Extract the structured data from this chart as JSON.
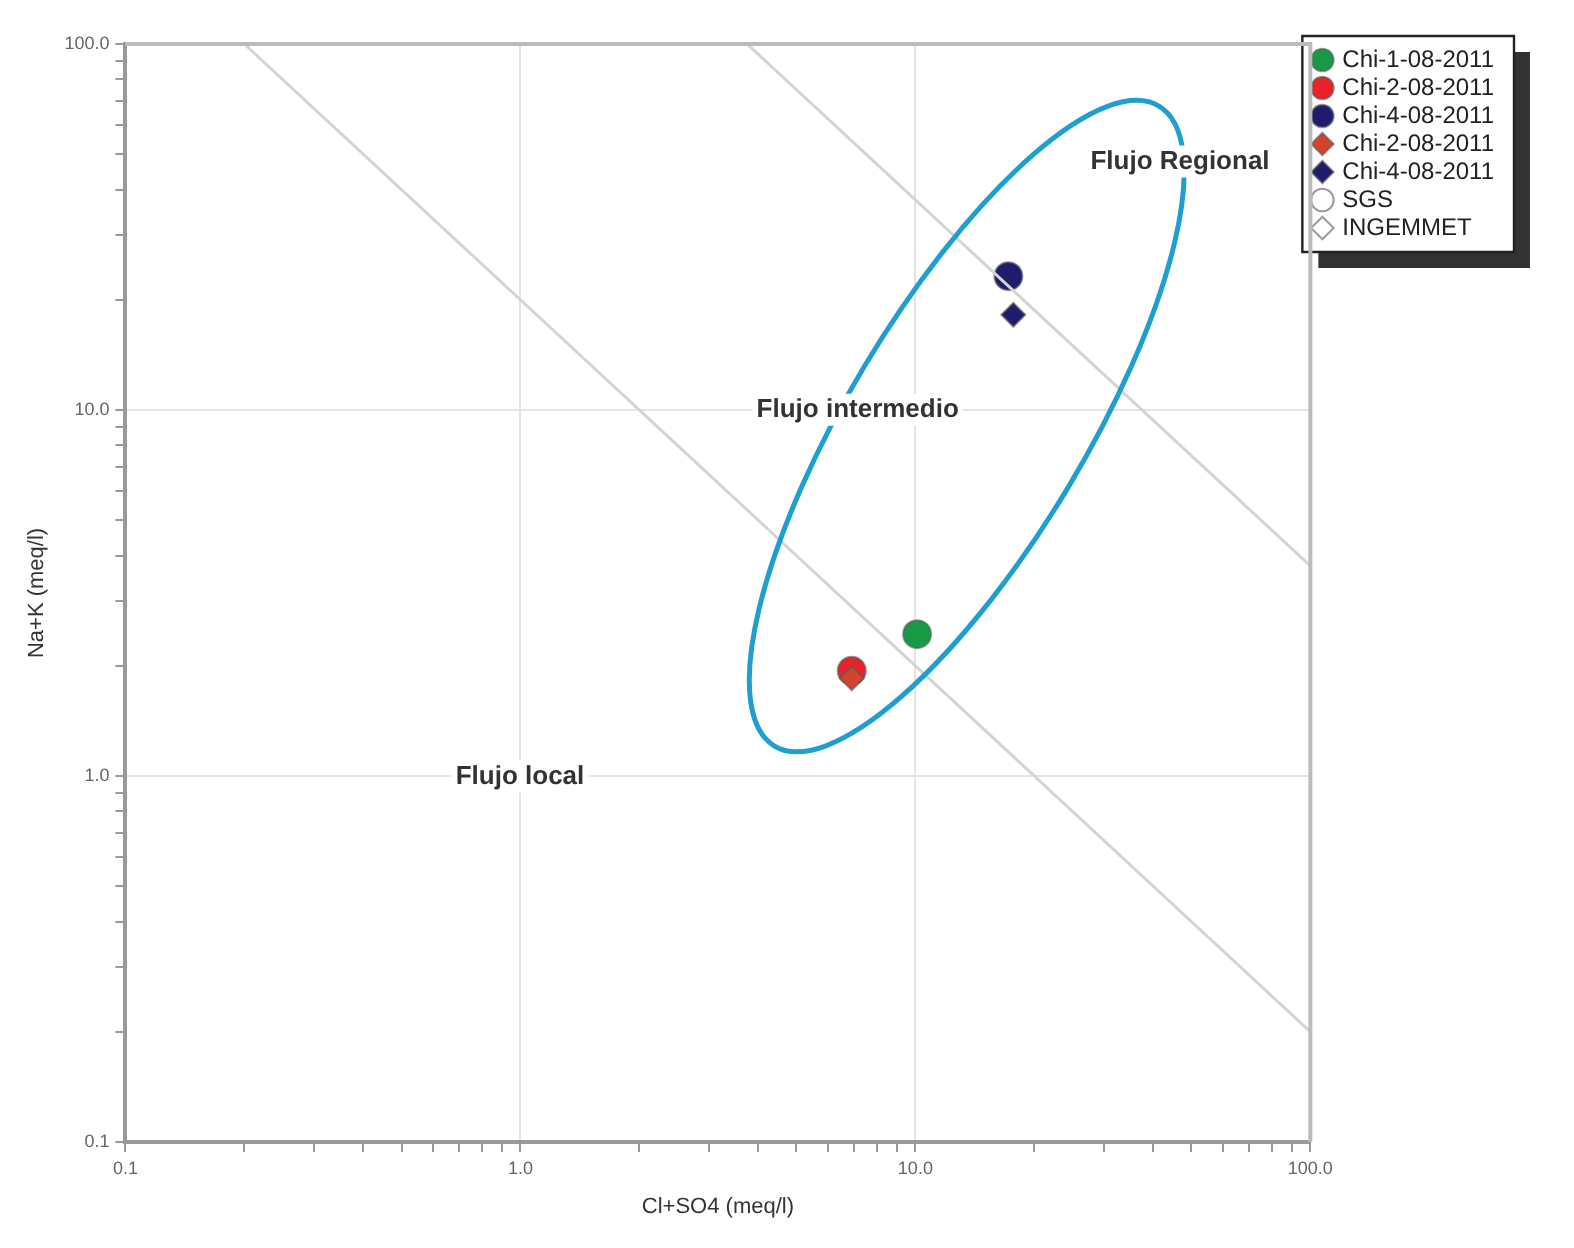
{
  "chart_data": {
    "type": "scatter",
    "xlabel": "Cl+SO4 (meq/l)",
    "ylabel": "Na+K (meq/l)",
    "log": "xy",
    "grid": true,
    "legend": "top right",
    "xlim": [
      0.1,
      100
    ],
    "ylim": [
      0.1,
      100
    ],
    "xticks": [
      0.1,
      {
        "value": 0.2,
        "label": null
      },
      {
        "value": 0.3,
        "label": null
      },
      {
        "value": 0.4,
        "label": null
      },
      {
        "value": 0.5,
        "label": null
      },
      {
        "value": 0.6,
        "label": null
      },
      {
        "value": 0.7,
        "label": null
      },
      {
        "value": 0.8,
        "label": null
      },
      {
        "value": 0.9,
        "label": null
      },
      {
        "value": 1,
        "label": "1.0"
      },
      {
        "value": 2,
        "label": null
      },
      {
        "value": 3,
        "label": null
      },
      {
        "value": 4,
        "label": null
      },
      {
        "value": 5,
        "label": null
      },
      {
        "value": 6,
        "label": null
      },
      {
        "value": 7,
        "label": null
      },
      {
        "value": 8,
        "label": null
      },
      {
        "value": 9,
        "label": null
      },
      {
        "value": 10,
        "label": "10.0"
      },
      {
        "value": 20,
        "label": null
      },
      {
        "value": 30,
        "label": null
      },
      {
        "value": 40,
        "label": null
      },
      {
        "value": 50,
        "label": null
      },
      {
        "value": 60,
        "label": null
      },
      {
        "value": 70,
        "label": null
      },
      {
        "value": 80,
        "label": null
      },
      {
        "value": 90,
        "label": null
      },
      {
        "value": 100,
        "label": "100.0"
      }
    ],
    "yticks": [
      0.1,
      {
        "value": 0.2,
        "label": null
      },
      {
        "value": 0.3,
        "label": null
      },
      {
        "value": 0.4,
        "label": null
      },
      {
        "value": 0.5,
        "label": null
      },
      {
        "value": 0.6,
        "label": null
      },
      {
        "value": 0.7,
        "label": null
      },
      {
        "value": 0.8,
        "label": null
      },
      {
        "value": 0.9,
        "label": null
      },
      {
        "value": 1,
        "label": "1.0"
      },
      {
        "value": 2,
        "label": null
      },
      {
        "value": 3,
        "label": null
      },
      {
        "value": 4,
        "label": null
      },
      {
        "value": 5,
        "label": null
      },
      {
        "value": 6,
        "label": null
      },
      {
        "value": 7,
        "label": null
      },
      {
        "value": 8,
        "label": null
      },
      {
        "value": 9,
        "label": null
      },
      {
        "value": 10,
        "label": "10.0"
      },
      {
        "value": 20,
        "label": null
      },
      {
        "value": 30,
        "label": null
      },
      {
        "value": 40,
        "label": null
      },
      {
        "value": 50,
        "label": null
      },
      {
        "value": 60,
        "label": null
      },
      {
        "value": 70,
        "label": null
      },
      {
        "value": 80,
        "label": null
      },
      {
        "value": 90,
        "label": null
      },
      {
        "value": 100,
        "label": "100.0"
      }
    ],
    "series": [
      {
        "type": "line",
        "color": "#d4d4d4",
        "x": [
          0.2,
          100
        ],
        "values": [
          100,
          0.2
        ],
        "marker": "none"
      },
      {
        "type": "line",
        "color": "#d4d4d4",
        "x": [
          3.75,
          100
        ],
        "values": [
          100,
          3.75
        ],
        "marker": "none"
      },
      {
        "name": "Chi-1-08-2011",
        "color": "#169a45",
        "marker": "circle",
        "x": [
          10.1
        ],
        "values": [
          2.44
        ]
      },
      {
        "name": "Chi-2-08-2011",
        "color": "#e8242a",
        "marker": "circle",
        "x": [
          6.9
        ],
        "values": [
          1.94
        ]
      },
      {
        "name": "Chi-4-08-2011",
        "color": "#1f1c6e",
        "marker": "circle",
        "x": [
          17.2
        ],
        "values": [
          23.2
        ]
      },
      {
        "name": "Chi-2-08-2011",
        "color": "#d4442c",
        "marker": "diamond",
        "x": [
          6.9
        ],
        "values": [
          1.85
        ]
      },
      {
        "name": "Chi-4-08-2011",
        "color": "#1f1c6e",
        "marker": "diamond",
        "x": [
          17.7
        ],
        "values": [
          18.2
        ]
      },
      {
        "name": "SGS",
        "color": "#ffffff",
        "marker": "circle"
      },
      {
        "name": "INGEMMET",
        "color": "#ffffff",
        "marker": "diamond"
      }
    ],
    "annotations": [
      "Flujo Regional",
      "Flujo intermedio",
      "Flujo local"
    ]
  }
}
